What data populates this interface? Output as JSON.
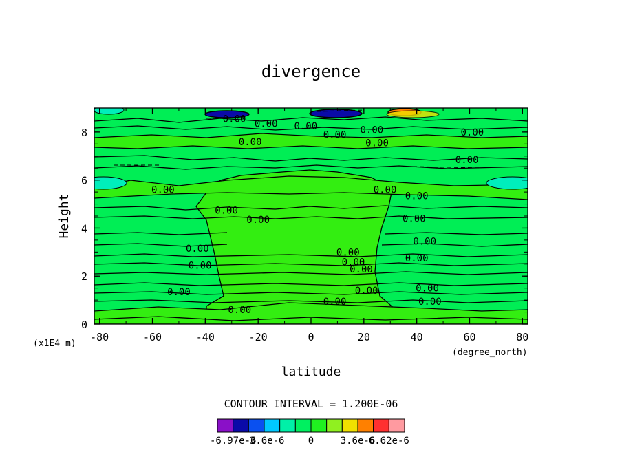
{
  "chart_data": {
    "type": "contour",
    "title": "divergence",
    "xlabel": "latitude",
    "ylabel": "Height",
    "x_units": "(degree_north)",
    "y_units": "(x1E4 m)",
    "xlim": [
      -82,
      82
    ],
    "ylim": [
      0,
      9
    ],
    "x_ticks": [
      "-80",
      "-60",
      "-40",
      "-20",
      "0",
      "20",
      "40",
      "60",
      "80"
    ],
    "x_tick_values": [
      -80,
      -60,
      -40,
      -20,
      0,
      20,
      40,
      60,
      80
    ],
    "y_ticks": [
      "0",
      "2",
      "4",
      "6",
      "8"
    ],
    "y_tick_values": [
      0,
      2,
      4,
      6,
      8
    ],
    "contour_interval_text": "CONTOUR INTERVAL = 1.200E-06",
    "contour_labels": [
      {
        "text": "0.00",
        "x": -29,
        "y": 8.55
      },
      {
        "text": "0.00",
        "x": -17,
        "y": 8.35
      },
      {
        "text": "0.00",
        "x": -2,
        "y": 8.25
      },
      {
        "text": "0.00",
        "x": 9,
        "y": 7.9
      },
      {
        "text": "0.00",
        "x": 23,
        "y": 8.1
      },
      {
        "text": "0.00",
        "x": 25,
        "y": 7.55
      },
      {
        "text": "0.00",
        "x": 61,
        "y": 8.0
      },
      {
        "text": "0.00",
        "x": -23,
        "y": 7.6
      },
      {
        "text": "0.00",
        "x": 59,
        "y": 6.85
      },
      {
        "text": "0.00",
        "x": -56,
        "y": 5.6
      },
      {
        "text": "0.00",
        "x": 28,
        "y": 5.6
      },
      {
        "text": "0.00",
        "x": 40,
        "y": 5.35
      },
      {
        "text": "0.00",
        "x": -32,
        "y": 4.75
      },
      {
        "text": "0.00",
        "x": -20,
        "y": 4.35
      },
      {
        "text": "0.00",
        "x": 39,
        "y": 4.4
      },
      {
        "text": "0.00",
        "x": 43,
        "y": 3.45
      },
      {
        "text": "0.00",
        "x": -43,
        "y": 3.15
      },
      {
        "text": "0.00",
        "x": 14,
        "y": 3.0
      },
      {
        "text": "0.00",
        "x": 16,
        "y": 2.6
      },
      {
        "text": "0.00",
        "x": 40,
        "y": 2.75
      },
      {
        "text": "0.00",
        "x": -42,
        "y": 2.45
      },
      {
        "text": "0.00",
        "x": 19,
        "y": 2.3
      },
      {
        "text": "0.00",
        "x": 21,
        "y": 1.4
      },
      {
        "text": "0.00",
        "x": -50,
        "y": 1.35
      },
      {
        "text": "0.00",
        "x": 44,
        "y": 1.5
      },
      {
        "text": "0.00",
        "x": 9,
        "y": 0.95
      },
      {
        "text": "0.00",
        "x": 45,
        "y": 0.95
      },
      {
        "text": "0.00",
        "x": -27,
        "y": 0.6
      }
    ],
    "colorbar": {
      "colors": [
        "#8a10c8",
        "#0a0aa8",
        "#0a50f0",
        "#00c8ff",
        "#00f0a8",
        "#00f060",
        "#20f020",
        "#90f020",
        "#f0e000",
        "#ff8000",
        "#ff3030",
        "#ff9aa0"
      ],
      "labels": [
        "-6.97e-6",
        "-3.6e-6",
        "0",
        "3.6e-6",
        "6.62e-6"
      ],
      "label_positions": [
        1,
        3,
        6,
        9,
        11
      ]
    }
  }
}
